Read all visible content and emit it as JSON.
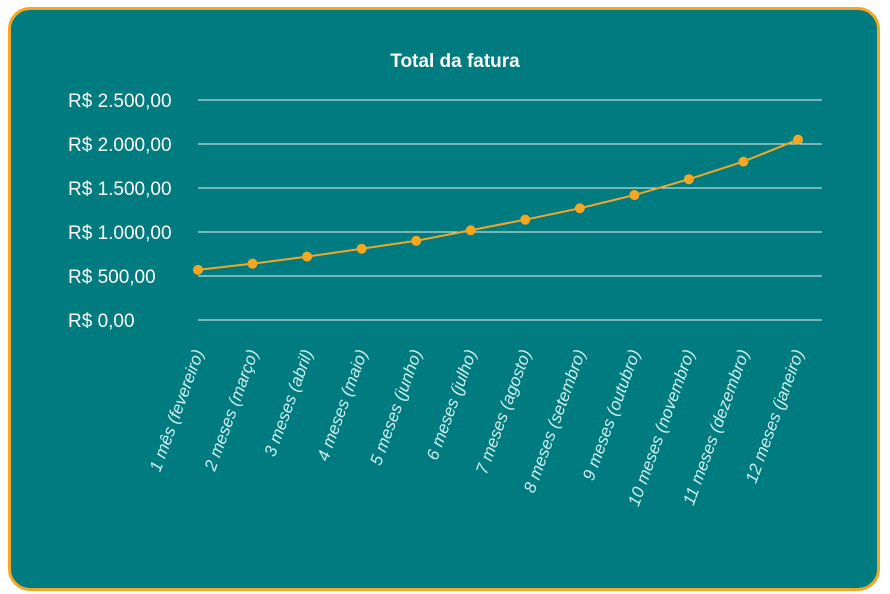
{
  "chart_data": {
    "type": "line",
    "title": "Total da fatura",
    "xlabel": "",
    "ylabel": "",
    "ylim": [
      0,
      2500
    ],
    "y_ticks": [
      {
        "value": 0,
        "label": "R$ 0,00"
      },
      {
        "value": 500,
        "label": "R$ 500,00"
      },
      {
        "value": 1000,
        "label": "R$ 1.000,00"
      },
      {
        "value": 1500,
        "label": "R$ 1.500,00"
      },
      {
        "value": 2000,
        "label": "R$ 2.000,00"
      },
      {
        "value": 2500,
        "label": "R$ 2.500,00"
      }
    ],
    "categories": [
      "1 mês (fevereiro)",
      "2 meses (março)",
      "3 meses (abril)",
      "4 meses (maio)",
      "5 meses (junho)",
      "6 meses (julho)",
      "7 meses (agosto)",
      "8 meses (setembro)",
      "9 meses (outubro)",
      "10 meses (novembro)",
      "11 meses (dezembro)",
      "12 meses (janeiro)"
    ],
    "series": [
      {
        "values": [
          570,
          640,
          720,
          810,
          900,
          1020,
          1140,
          1270,
          1420,
          1600,
          1800,
          2050
        ]
      }
    ],
    "grid": true,
    "legend": "none",
    "colors": {
      "background": "#007b7f",
      "border": "#f5a623",
      "line": "#f5a623",
      "grid": "#e8f3f3",
      "text": "#ffffff"
    }
  }
}
